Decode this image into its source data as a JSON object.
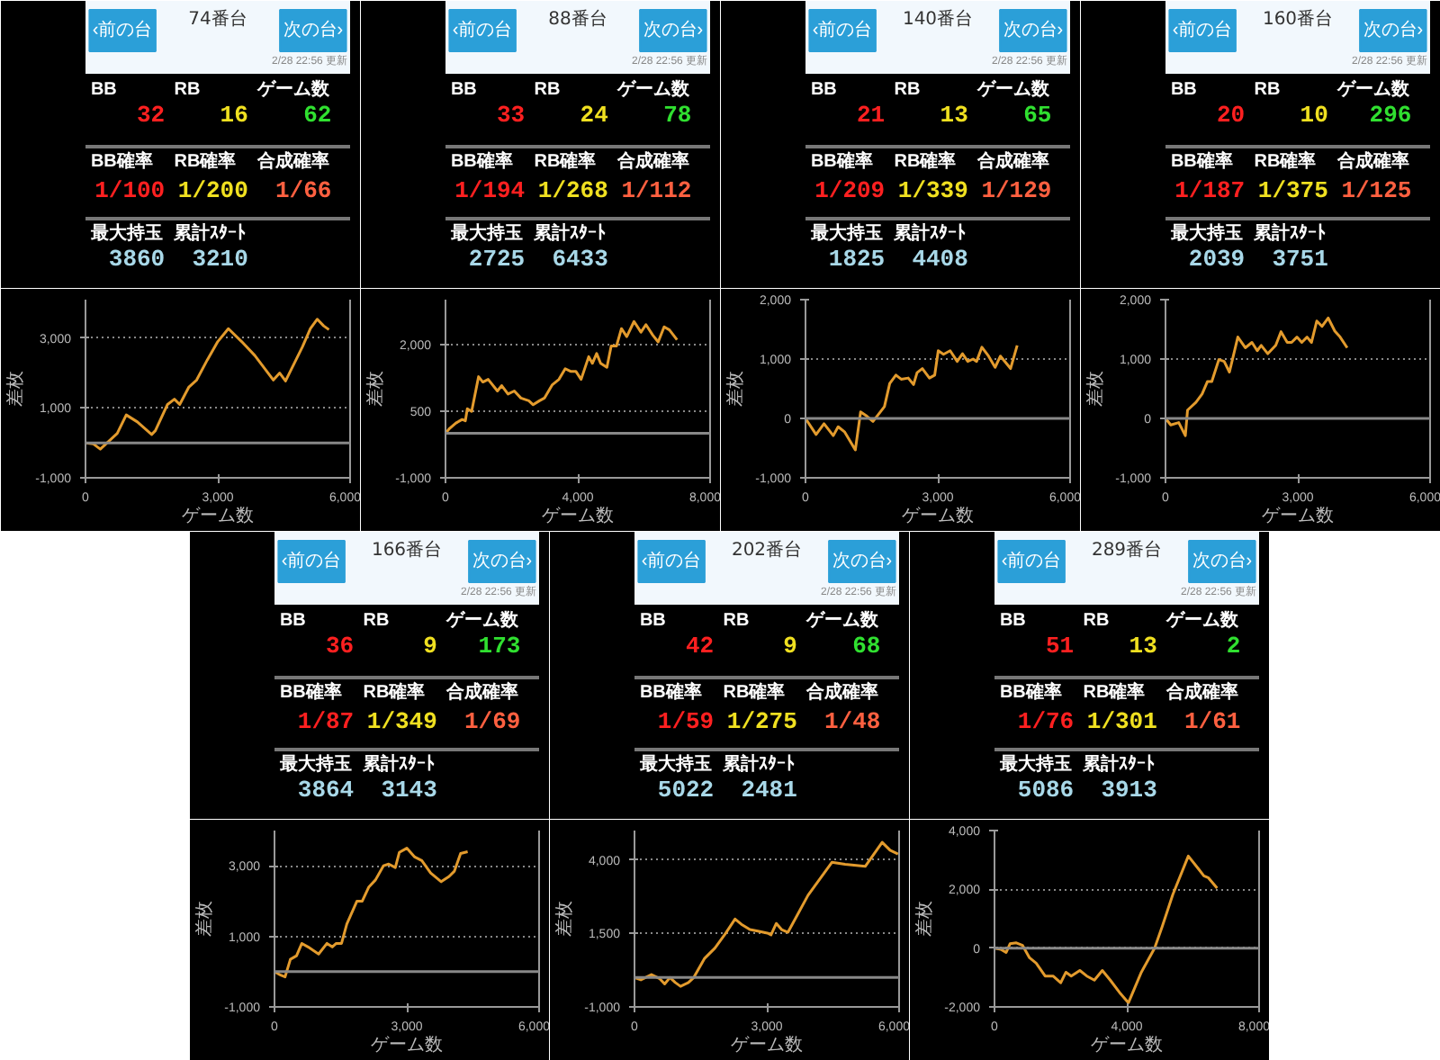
{
  "chart_data": [
    {
      "type": "other",
      "title": "74番台",
      "annotations": [
        "‹前の台",
        "次の台›",
        "2/28 22:56 更新",
        "BB",
        "32",
        "RB",
        "16",
        "ゲーム数",
        "62",
        "BB確率",
        "1/100",
        "RB確率",
        "1/200",
        "合成確率",
        "1/66",
        "最大持玉",
        "3860",
        "累計ｽﾀｰﾄ",
        "3210"
      ],
      "colors": [
        "#ff2020",
        "#f0e020",
        "#30e030",
        "#ff2020",
        "#f0e020",
        "#ff6040",
        "#a8d8e8",
        "#a8d8e8"
      ]
    },
    {
      "type": "line",
      "xlabel": "ゲーム数",
      "ylabel": "差枚",
      "xlim": [
        0,
        6000
      ],
      "ylim": [
        -1000,
        4100
      ],
      "xticks": [
        0,
        {
          "value": 3000,
          "label": "3,000"
        },
        {
          "value": 6000,
          "label": "6,000"
        }
      ],
      "yticks": [
        {
          "value": -1000,
          "label": "-1,000"
        },
        {
          "value": 1000,
          "label": "1,000"
        },
        {
          "value": 3000,
          "label": "3,000"
        }
      ],
      "grid": "y",
      "ref_lines": [
        {
          "axis": "y",
          "value": 0,
          "color": "#888888"
        }
      ],
      "series": [
        {
          "color": "#e39b2d",
          "x": [
            0,
            180,
            336,
            720,
            924,
            1176,
            1500,
            1584,
            1860,
            2016,
            2136,
            2340,
            2520,
            2760,
            3000,
            3240,
            3540,
            3840,
            4260,
            4404,
            4536,
            4920,
            5100,
            5256,
            5400,
            5520
          ],
          "values": [
            0,
            -30,
            -180,
            270,
            800,
            600,
            240,
            350,
            1100,
            1250,
            1100,
            1590,
            1800,
            2370,
            2900,
            3270,
            2900,
            2500,
            1800,
            2000,
            1770,
            2750,
            3270,
            3540,
            3350,
            3240
          ]
        }
      ]
    },
    {
      "type": "other",
      "title": "88番台",
      "annotations": [
        "‹前の台",
        "次の台›",
        "2/28 22:56 更新",
        "BB",
        "33",
        "RB",
        "24",
        "ゲーム数",
        "78",
        "BB確率",
        "1/194",
        "RB確率",
        "1/268",
        "合成確率",
        "1/112",
        "最大持玉",
        "2725",
        "累計ｽﾀｰﾄ",
        "6433"
      ],
      "colors": [
        "#ff2020",
        "#f0e020",
        "#30e030",
        "#ff2020",
        "#f0e020",
        "#ff6040",
        "#a8d8e8",
        "#a8d8e8"
      ]
    },
    {
      "type": "line",
      "xlabel": "ゲーム数",
      "ylabel": "差枚",
      "xlim": [
        0,
        8000
      ],
      "ylim": [
        -1000,
        3000
      ],
      "xticks": [
        0,
        {
          "value": 4000,
          "label": "4,000"
        },
        {
          "value": 8000,
          "label": "8,000"
        }
      ],
      "yticks": [
        {
          "value": -1000,
          "label": "-1,000"
        },
        500,
        {
          "value": 2000,
          "label": "2,000"
        }
      ],
      "grid": "y",
      "ref_lines": [
        {
          "axis": "y",
          "value": 0,
          "color": "#888888"
        }
      ],
      "series": [
        {
          "color": "#e39b2d",
          "x": [
            0,
            126,
            315,
            504,
            600,
            660,
            790,
            1000,
            1130,
            1290,
            1570,
            1700,
            1890,
            2080,
            2280,
            2520,
            2650,
            2840,
            2990,
            3230,
            3430,
            3620,
            3780,
            3940,
            4100,
            4330,
            4440,
            4570,
            4690,
            4880,
            5010,
            5170,
            5320,
            5480,
            5700,
            5910,
            6060,
            6270,
            6430,
            6610,
            6770,
            7000
          ],
          "values": [
            0,
            110,
            230,
            310,
            280,
            550,
            490,
            1270,
            1150,
            1210,
            950,
            1070,
            880,
            950,
            790,
            730,
            640,
            730,
            790,
            1090,
            1210,
            1450,
            1390,
            1390,
            1210,
            1720,
            1570,
            1790,
            1570,
            1480,
            1960,
            1960,
            2350,
            2170,
            2510,
            2270,
            2440,
            2200,
            2050,
            2390,
            2320,
            2100
          ]
        }
      ]
    },
    {
      "type": "other",
      "title": "140番台",
      "annotations": [
        "‹前の台",
        "次の台›",
        "2/28 22:56 更新",
        "BB",
        "21",
        "RB",
        "13",
        "ゲーム数",
        "65",
        "BB確率",
        "1/209",
        "RB確率",
        "1/339",
        "合成確率",
        "1/129",
        "最大持玉",
        "1825",
        "累計ｽﾀｰﾄ",
        "4408"
      ],
      "colors": [
        "#ff2020",
        "#f0e020",
        "#30e030",
        "#ff2020",
        "#f0e020",
        "#ff6040",
        "#a8d8e8",
        "#a8d8e8"
      ]
    },
    {
      "type": "line",
      "xlabel": "ゲーム数",
      "ylabel": "差枚",
      "xlim": [
        0,
        6000
      ],
      "ylim": [
        -1000,
        2000
      ],
      "xticks": [
        0,
        {
          "value": 3000,
          "label": "3,000"
        },
        {
          "value": 6000,
          "label": "6,000"
        }
      ],
      "yticks": [
        {
          "value": -1000,
          "label": "-1,000"
        },
        0,
        {
          "value": 1000,
          "label": "1,000"
        },
        {
          "value": 2000,
          "label": "2,000"
        }
      ],
      "grid": "y",
      "ref_lines": [
        {
          "axis": "y",
          "value": 0,
          "color": "#888888"
        }
      ],
      "series": [
        {
          "color": "#e39b2d",
          "x": [
            0,
            240,
            420,
            630,
            740,
            890,
            1130,
            1250,
            1370,
            1530,
            1790,
            1910,
            2050,
            2170,
            2330,
            2450,
            2530,
            2650,
            2810,
            2930,
            3010,
            3130,
            3280,
            3440,
            3560,
            3680,
            3800,
            3880,
            4000,
            4150,
            4300,
            4420,
            4650,
            4800
          ],
          "values": [
            0,
            -270,
            -90,
            -290,
            -140,
            -230,
            -530,
            110,
            50,
            -50,
            200,
            590,
            730,
            660,
            680,
            570,
            770,
            840,
            680,
            730,
            1140,
            1080,
            1140,
            960,
            1090,
            960,
            1000,
            960,
            1200,
            1050,
            860,
            1050,
            840,
            1230
          ]
        }
      ]
    },
    {
      "type": "other",
      "title": "160番台",
      "annotations": [
        "‹前の台",
        "次の台›",
        "2/28 22:56 更新",
        "BB",
        "20",
        "RB",
        "10",
        "ゲーム数",
        "296",
        "BB確率",
        "1/187",
        "RB確率",
        "1/375",
        "合成確率",
        "1/125",
        "最大持玉",
        "2039",
        "累計ｽﾀｰﾄ",
        "3751"
      ],
      "colors": [
        "#ff2020",
        "#f0e020",
        "#30e030",
        "#ff2020",
        "#f0e020",
        "#ff6040",
        "#a8d8e8",
        "#a8d8e8"
      ]
    },
    {
      "type": "line",
      "xlabel": "ゲーム数",
      "ylabel": "差枚",
      "xlim": [
        0,
        6000
      ],
      "ylim": [
        -1000,
        2000
      ],
      "xticks": [
        0,
        {
          "value": 3000,
          "label": "3,000"
        },
        {
          "value": 6000,
          "label": "6,000"
        }
      ],
      "yticks": [
        {
          "value": -1000,
          "label": "-1,000"
        },
        0,
        {
          "value": 1000,
          "label": "1,000"
        },
        {
          "value": 2000,
          "label": "2,000"
        }
      ],
      "grid": "y",
      "ref_lines": [
        {
          "axis": "y",
          "value": 0,
          "color": "#888888"
        }
      ],
      "series": [
        {
          "color": "#e39b2d",
          "x": [
            0,
            120,
            300,
            450,
            500,
            690,
            830,
            950,
            1050,
            1210,
            1330,
            1450,
            1640,
            1810,
            1960,
            2080,
            2170,
            2320,
            2500,
            2620,
            2760,
            2860,
            2980,
            3090,
            3210,
            3310,
            3430,
            3550,
            3690,
            3840,
            3960,
            4120
          ],
          "values": [
            0,
            -110,
            -70,
            -290,
            140,
            270,
            410,
            620,
            620,
            990,
            960,
            780,
            1370,
            1190,
            1280,
            1140,
            1230,
            1090,
            1230,
            1460,
            1280,
            1280,
            1370,
            1280,
            1370,
            1280,
            1640,
            1550,
            1690,
            1470,
            1370,
            1190
          ]
        }
      ]
    },
    {
      "type": "other",
      "title": "166番台",
      "annotations": [
        "‹前の台",
        "次の台›",
        "2/28 22:56 更新",
        "BB",
        "36",
        "RB",
        "9",
        "ゲーム数",
        "173",
        "BB確率",
        "1/87",
        "RB確率",
        "1/349",
        "合成確率",
        "1/69",
        "最大持玉",
        "3864",
        "累計ｽﾀｰﾄ",
        "3143"
      ],
      "colors": [
        "#ff2020",
        "#f0e020",
        "#30e030",
        "#ff2020",
        "#f0e020",
        "#ff6040",
        "#a8d8e8",
        "#a8d8e8"
      ]
    },
    {
      "type": "line",
      "xlabel": "ゲーム数",
      "ylabel": "差枚",
      "xlim": [
        0,
        6000
      ],
      "ylim": [
        -1000,
        4000
      ],
      "xticks": [
        0,
        {
          "value": 3000,
          "label": "3,000"
        },
        {
          "value": 6000,
          "label": "6,000"
        }
      ],
      "yticks": [
        {
          "value": -1000,
          "label": "-1,000"
        },
        {
          "value": 1000,
          "label": "1,000"
        },
        {
          "value": 3000,
          "label": "3,000"
        }
      ],
      "grid": "y",
      "ref_lines": [
        {
          "axis": "y",
          "value": 0,
          "color": "#888888"
        }
      ],
      "series": [
        {
          "color": "#e39b2d",
          "x": [
            0,
            140,
            240,
            360,
            500,
            620,
            760,
            1000,
            1190,
            1310,
            1400,
            1520,
            1640,
            1870,
            1990,
            2140,
            2290,
            2470,
            2590,
            2740,
            2830,
            3000,
            3180,
            3340,
            3540,
            3780,
            3960,
            4080,
            4220,
            4380
          ],
          "values": [
            0,
            -100,
            -150,
            350,
            450,
            800,
            700,
            500,
            800,
            700,
            800,
            800,
            1350,
            2000,
            2000,
            2400,
            2600,
            3000,
            3050,
            2950,
            3380,
            3500,
            3250,
            3150,
            2800,
            2550,
            2700,
            2850,
            3350,
            3400
          ]
        }
      ]
    },
    {
      "type": "other",
      "title": "202番台",
      "annotations": [
        "‹前の台",
        "次の台›",
        "2/28 22:56 更新",
        "BB",
        "42",
        "RB",
        "9",
        "ゲーム数",
        "68",
        "BB確率",
        "1/59",
        "RB確率",
        "1/275",
        "合成確率",
        "1/48",
        "最大持玉",
        "5022",
        "累計ｽﾀｰﾄ",
        "2481"
      ],
      "colors": [
        "#ff2020",
        "#f0e020",
        "#30e030",
        "#ff2020",
        "#f0e020",
        "#ff6040",
        "#a8d8e8",
        "#a8d8e8"
      ]
    },
    {
      "type": "line",
      "xlabel": "ゲーム数",
      "ylabel": "差枚",
      "xlim": [
        0,
        6000
      ],
      "ylim": [
        -1000,
        5000
      ],
      "xticks": [
        0,
        {
          "value": 3000,
          "label": "3,000"
        },
        {
          "value": 6000,
          "label": "6,000"
        }
      ],
      "yticks": [
        {
          "value": -1000,
          "label": "-1,000"
        },
        {
          "value": 1500,
          "label": "1,500"
        },
        {
          "value": 4000,
          "label": "4,000"
        }
      ],
      "grid": "y",
      "ref_lines": [
        {
          "axis": "y",
          "value": 0,
          "color": "#888888"
        }
      ],
      "series": [
        {
          "color": "#e39b2d",
          "x": [
            0,
            144,
            384,
            564,
            684,
            804,
            924,
            1044,
            1224,
            1344,
            1584,
            1824,
            2064,
            2280,
            2424,
            2616,
            2796,
            3036,
            3096,
            3216,
            3336,
            3480,
            3936,
            4476,
            4776,
            5232,
            5616,
            5796,
            5976
          ],
          "values": [
            0,
            -80,
            100,
            -30,
            -220,
            0,
            -170,
            -300,
            -170,
            0,
            640,
            1000,
            1500,
            1990,
            1810,
            1630,
            1580,
            1500,
            1450,
            1840,
            1630,
            1540,
            2800,
            3920,
            3850,
            3780,
            4600,
            4330,
            4200
          ]
        }
      ]
    },
    {
      "type": "other",
      "title": "289番台",
      "annotations": [
        "‹前の台",
        "次の台›",
        "2/28 22:56 更新",
        "BB",
        "51",
        "RB",
        "13",
        "ゲーム数",
        "2",
        "BB確率",
        "1/76",
        "RB確率",
        "1/301",
        "合成確率",
        "1/61",
        "最大持玉",
        "5086",
        "累計ｽﾀｰﾄ",
        "3913"
      ],
      "colors": [
        "#ff2020",
        "#f0e020",
        "#30e030",
        "#ff2020",
        "#f0e020",
        "#ff6040",
        "#a8d8e8",
        "#a8d8e8"
      ]
    },
    {
      "type": "line",
      "xlabel": "ゲーム数",
      "ylabel": "差枚",
      "xlim": [
        0,
        8000
      ],
      "ylim": [
        -2000,
        4000
      ],
      "xticks": [
        0,
        {
          "value": 4000,
          "label": "4,000"
        },
        {
          "value": 8000,
          "label": "8,000"
        }
      ],
      "yticks": [
        {
          "value": -2000,
          "label": "-2,000"
        },
        0,
        {
          "value": 2000,
          "label": "2,000"
        },
        {
          "value": 4000,
          "label": "4,000"
        }
      ],
      "grid": "y",
      "ref_lines": [
        {
          "axis": "y",
          "value": 0,
          "color": "#888888"
        }
      ],
      "series": [
        {
          "color": "#e39b2d",
          "x": [
            0,
            190,
            350,
            470,
            660,
            850,
            1060,
            1260,
            1530,
            1770,
            2000,
            2160,
            2320,
            2580,
            2790,
            3020,
            3260,
            3500,
            3810,
            4050,
            4440,
            4840,
            5070,
            5390,
            5860,
            6170,
            6330,
            6460,
            6730
          ],
          "values": [
            0,
            -40,
            -150,
            150,
            180,
            90,
            -330,
            -510,
            -950,
            -950,
            -1180,
            -820,
            -950,
            -760,
            -950,
            -1090,
            -760,
            -1090,
            -1550,
            -1860,
            -820,
            0,
            730,
            1820,
            3130,
            2690,
            2460,
            2400,
            2040
          ]
        }
      ]
    }
  ]
}
